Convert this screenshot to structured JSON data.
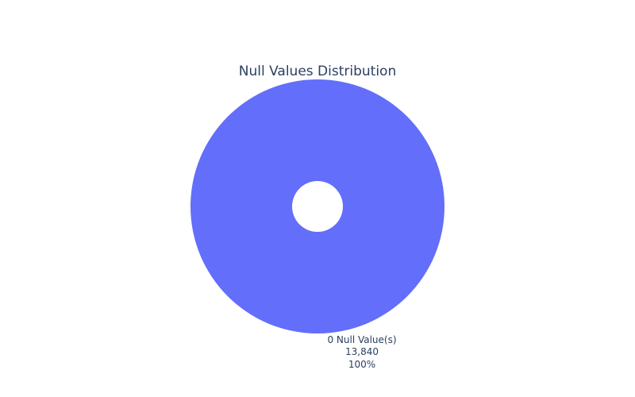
{
  "chart_data": {
    "type": "pie",
    "title": "Null Values Distribution",
    "hole": true,
    "slices": [
      {
        "label": "0 Null Value(s)",
        "value": 13840,
        "value_text": "13,840",
        "percent_text": "100%",
        "color": "#636efa"
      }
    ]
  }
}
